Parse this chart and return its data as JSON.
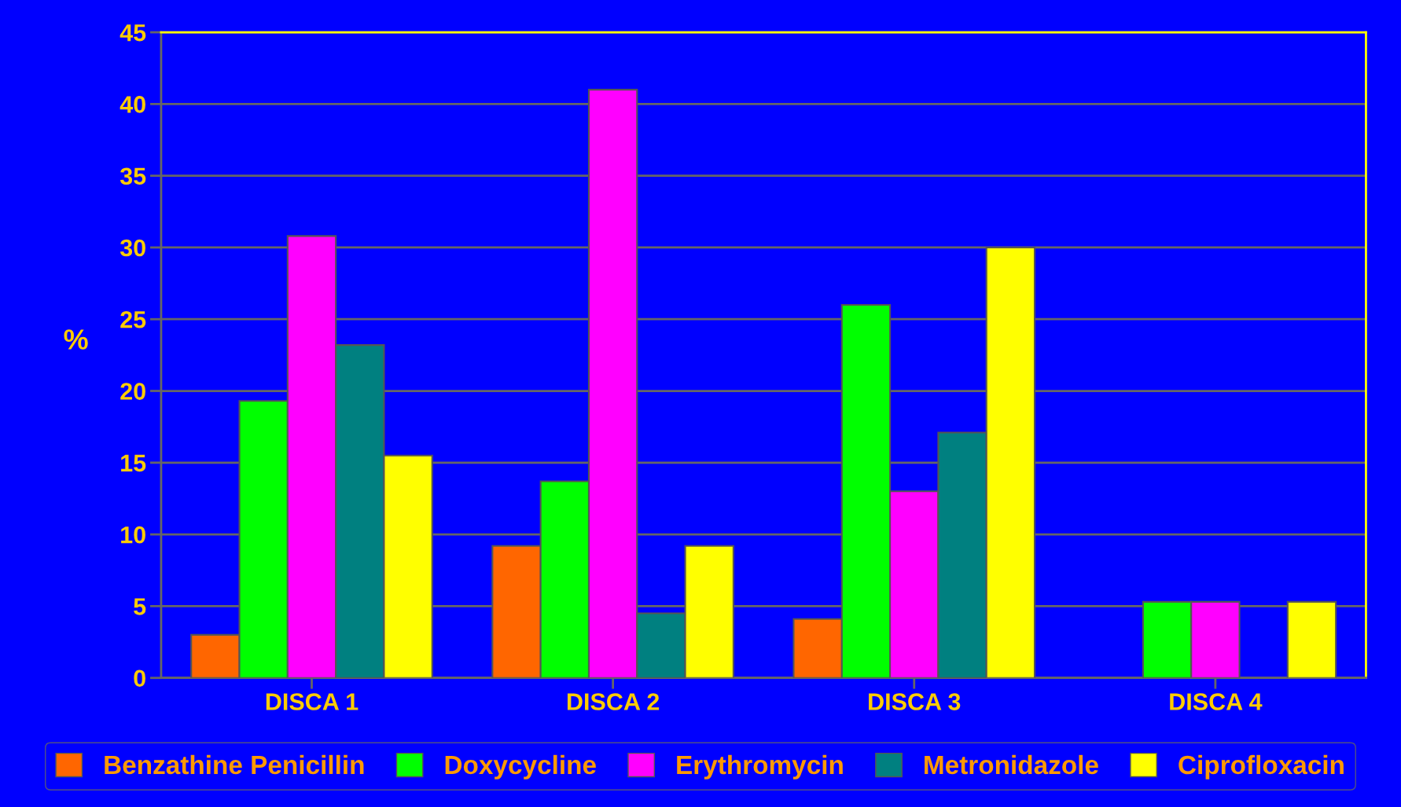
{
  "chart_data": {
    "type": "bar",
    "ylabel": "%",
    "categories": [
      "DISCA 1",
      "DISCA 2",
      "DISCA 3",
      "DISCA 4"
    ],
    "series": [
      {
        "name": "Benzathine Penicillin",
        "color": "#ff6600",
        "values": [
          3.0,
          9.2,
          4.1,
          null
        ]
      },
      {
        "name": "Doxycycline",
        "color": "#00ff00",
        "values": [
          19.3,
          13.7,
          26.0,
          5.3
        ]
      },
      {
        "name": "Erythromycin",
        "color": "#ff00ff",
        "values": [
          30.8,
          41.0,
          13.0,
          5.3
        ]
      },
      {
        "name": "Metronidazole",
        "color": "#008080",
        "values": [
          23.2,
          4.5,
          17.1,
          null
        ]
      },
      {
        "name": "Ciprofloxacin",
        "color": "#ffff00",
        "values": [
          15.5,
          9.2,
          30.0,
          5.3
        ]
      }
    ],
    "ylim": [
      0,
      45
    ],
    "yticks": [
      0,
      5,
      10,
      15,
      20,
      25,
      30,
      35,
      40,
      45
    ],
    "grid": "y",
    "legend": "bottom"
  }
}
